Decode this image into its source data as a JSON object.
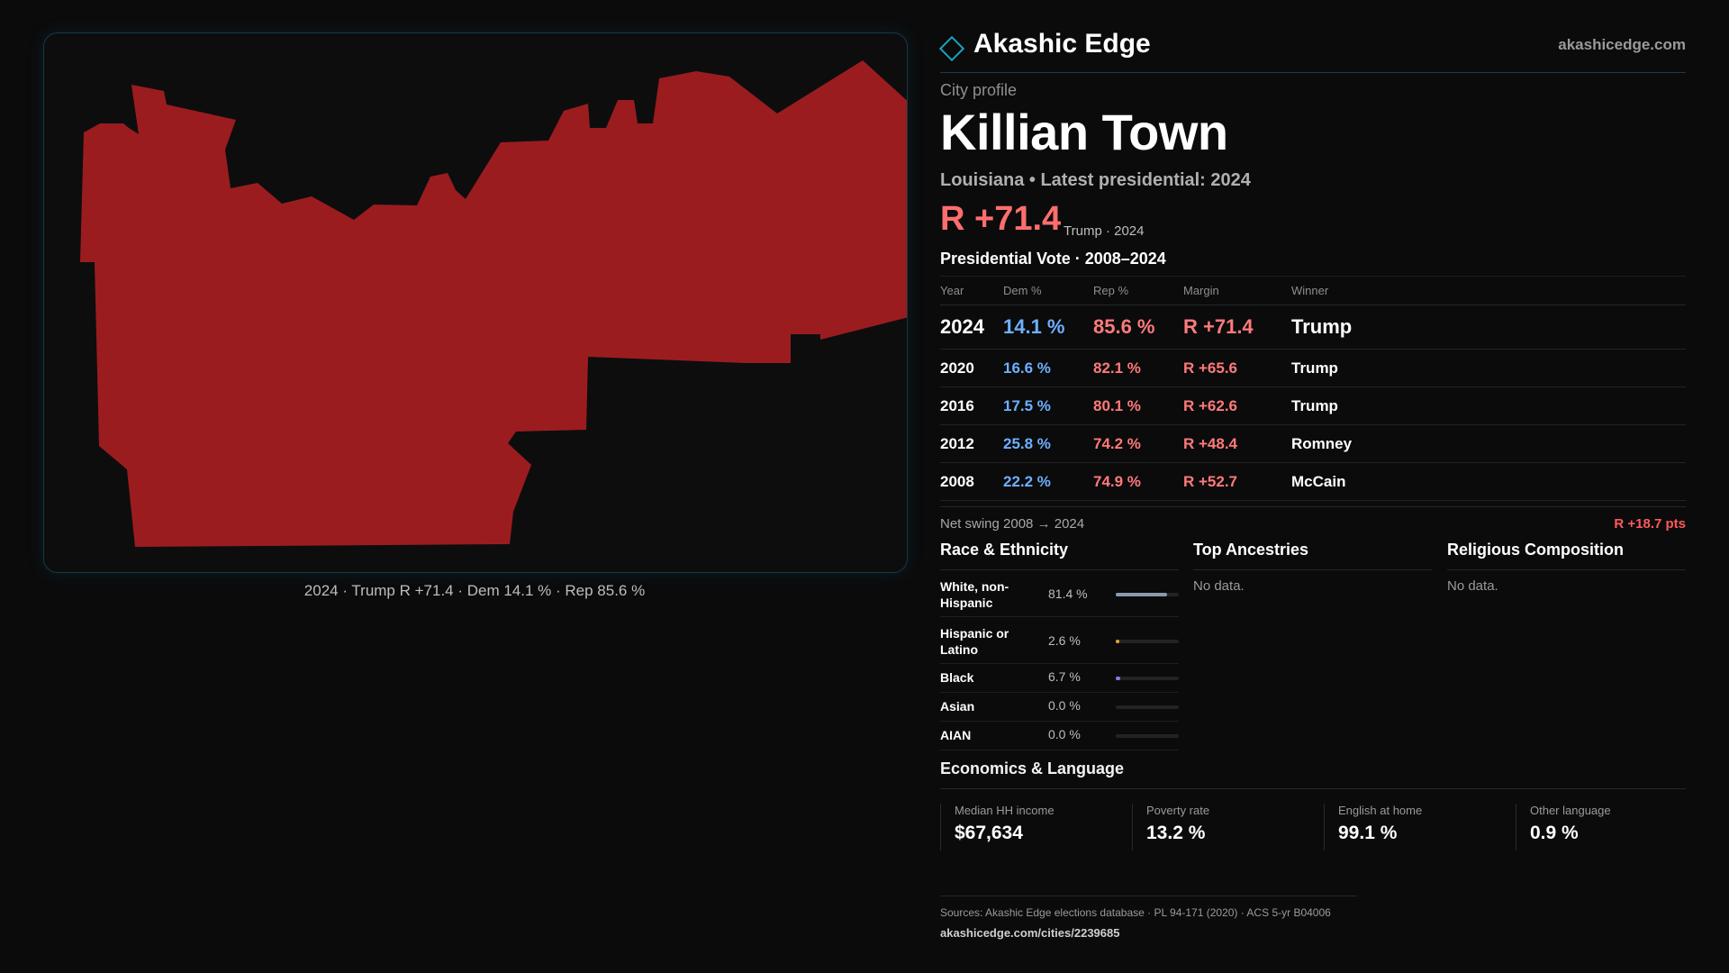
{
  "brand": {
    "name": "Akashic Edge",
    "site": "akashicedge.com"
  },
  "profile": {
    "kicker": "City profile",
    "title": "Killian Town",
    "subtitle": "Louisiana • Latest presidential: 2024",
    "margin": "R +71.4",
    "margin_note": "Trump · 2024"
  },
  "map": {
    "caption": "2024 · Trump R +71.4 · Dem 14.1 % · Rep 85.6 %",
    "fill_color": "#9b1c1f",
    "border_color": "#153a45"
  },
  "vote": {
    "title": "Presidential Vote · 2008–2024",
    "headers": {
      "year": "Year",
      "dem": "Dem %",
      "rep": "Rep %",
      "margin": "Margin",
      "winner": "Winner"
    },
    "rows": [
      {
        "year": "2024",
        "dem": "14.1 %",
        "rep": "85.6 %",
        "margin": "R +71.4",
        "winner": "Trump"
      },
      {
        "year": "2020",
        "dem": "16.6 %",
        "rep": "82.1 %",
        "margin": "R +65.6",
        "winner": "Trump"
      },
      {
        "year": "2016",
        "dem": "17.5 %",
        "rep": "80.1 %",
        "margin": "R +62.6",
        "winner": "Trump"
      },
      {
        "year": "2012",
        "dem": "25.8 %",
        "rep": "74.2 %",
        "margin": "R +48.4",
        "winner": "Romney"
      },
      {
        "year": "2008",
        "dem": "22.2 %",
        "rep": "74.9 %",
        "margin": "R +52.7",
        "winner": "McCain"
      }
    ],
    "net_swing_label": "Net swing 2008 → 2024",
    "net_swing_value": "R +18.7 pts"
  },
  "race": {
    "title": "Race & Ethnicity",
    "rows": [
      {
        "name": "White, non-Hispanic",
        "pct": "81.4 %",
        "value": 81.4,
        "color": "#8a9aae"
      },
      {
        "name": "Hispanic or Latino",
        "pct": "2.6 %",
        "value": 2.6,
        "color": "#e8a23a"
      },
      {
        "name": "Black",
        "pct": "6.7 %",
        "value": 6.7,
        "color": "#8a7be8"
      },
      {
        "name": "Asian",
        "pct": "0.0 %",
        "value": 0.0,
        "color": "#4ab0a0"
      },
      {
        "name": "AIAN",
        "pct": "0.0 %",
        "value": 0.0,
        "color": "#c07850"
      }
    ]
  },
  "ancestries": {
    "title": "Top Ancestries",
    "empty": "No data."
  },
  "religion": {
    "title": "Religious Composition",
    "empty": "No data."
  },
  "economics": {
    "title": "Economics & Language",
    "items": [
      {
        "label": "Median HH income",
        "value": "$67,634"
      },
      {
        "label": "Poverty rate",
        "value": "13.2 %"
      },
      {
        "label": "English at home",
        "value": "99.1 %"
      },
      {
        "label": "Other language",
        "value": "0.9 %"
      }
    ]
  },
  "sources": {
    "text": "Sources: Akashic Edge elections database · PL 94-171 (2020) · ACS 5-yr B04006",
    "url": "akashicedge.com/cities/2239685"
  }
}
